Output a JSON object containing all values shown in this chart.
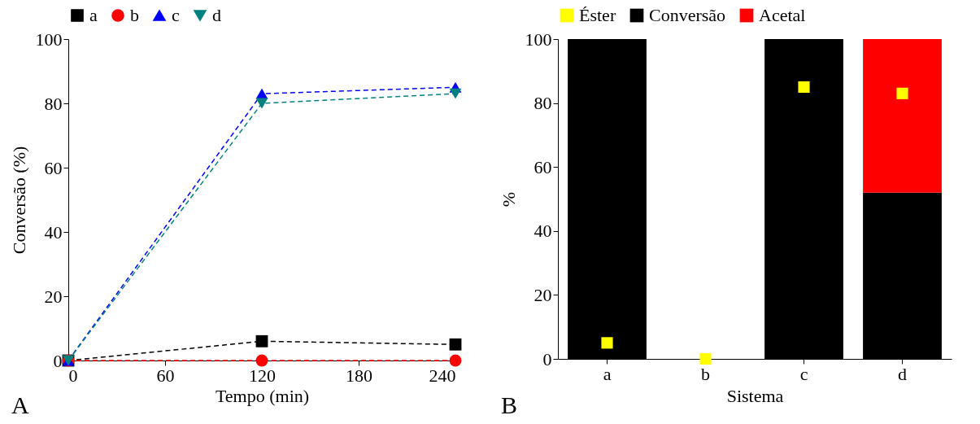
{
  "chart_data": [
    {
      "type": "line",
      "x": [
        0,
        120,
        240
      ],
      "xlim": [
        0,
        240
      ],
      "xticks": [
        0,
        60,
        120,
        180,
        240
      ],
      "ylim": [
        0,
        100
      ],
      "yticks": [
        0,
        20,
        40,
        60,
        80,
        100
      ],
      "xlabel": "Tempo (min)",
      "ylabel": "Conversão  (%)",
      "legend": "top",
      "line_style": "dashed",
      "grid": false,
      "annotations": [
        "A"
      ],
      "series": [
        {
          "name": "a",
          "color": "#000000",
          "marker": "square",
          "values": [
            0,
            6,
            5
          ]
        },
        {
          "name": "b",
          "color": "#ff0000",
          "marker": "circle",
          "values": [
            0,
            0,
            0
          ]
        },
        {
          "name": "c",
          "color": "#0000ff",
          "marker": "triangle",
          "values": [
            0,
            83,
            85
          ]
        },
        {
          "name": "d",
          "color": "#008080",
          "marker": "triangle-down",
          "values": [
            0,
            80,
            83
          ]
        }
      ]
    },
    {
      "type": "bar",
      "categories": [
        "a",
        "b",
        "c",
        "d"
      ],
      "stacked": true,
      "ylim": [
        0,
        100
      ],
      "yticks": [
        0,
        20,
        40,
        60,
        80,
        100
      ],
      "xlabel": "Sistema",
      "ylabel": "%",
      "legend": "top",
      "grid": false,
      "annotations": [
        "B"
      ],
      "series": [
        {
          "name": "Éster",
          "type": "scatter",
          "marker": "square",
          "color": "#ffff00",
          "x": [
            "a",
            "b",
            "c",
            "d"
          ],
          "values": [
            5,
            0,
            85,
            83
          ]
        },
        {
          "name": "Conversão",
          "color": "#000000",
          "values": [
            100,
            0,
            100,
            52
          ]
        },
        {
          "name": "Acetal",
          "color": "#ff0000",
          "values": [
            0,
            0,
            0,
            48
          ]
        }
      ]
    }
  ]
}
